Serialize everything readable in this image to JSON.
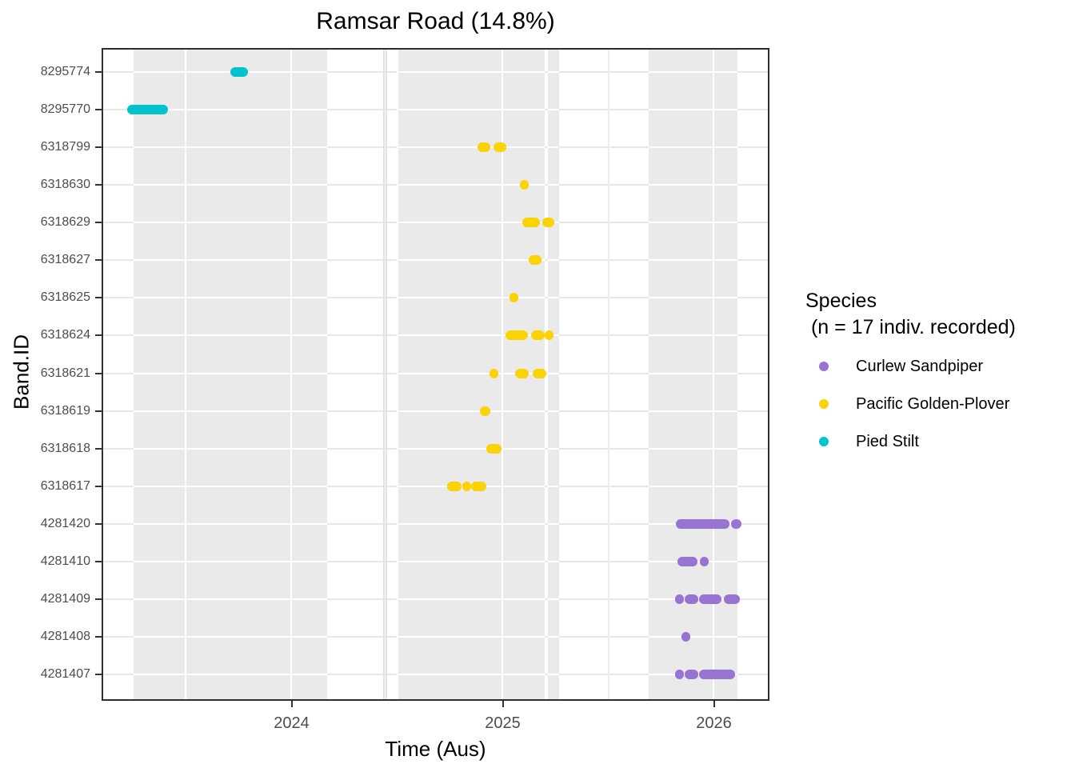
{
  "title": "Ramsar Road (14.8%)",
  "axes": {
    "x_title": "Time (Aus)",
    "y_title": "Band.ID",
    "x_tick_labels": [
      "2024",
      "2025",
      "2026"
    ]
  },
  "legend": {
    "title_line1": "Species",
    "title_line2": " (n = 17 indiv. recorded)",
    "items": [
      {
        "label": "Curlew Sandpiper",
        "color": "#9874D2"
      },
      {
        "label": "Pacific Golden-Plover",
        "color": "#FBD303"
      },
      {
        "label": "Pied Stilt",
        "color": "#00C3CD"
      }
    ]
  },
  "chart_data": {
    "type": "scatter",
    "title": "Ramsar Road (14.8%)",
    "xlabel": "Time (Aus)",
    "ylabel": "Band.ID",
    "xlim": [
      2023.1,
      2026.26
    ],
    "x_major_ticks": [
      2024,
      2025,
      2026
    ],
    "x_minor_gridlines": [
      2023.5,
      2024.5,
      2025.5
    ],
    "grid": "horizontal gridline per Band.ID row; vertical major+minor year gridlines; grey shaded monitoring periods behind data",
    "legend_position": "right",
    "species_colors": {
      "Curlew Sandpiper": "#9874D2",
      "Pacific Golden-Plover": "#FBD303",
      "Pied Stilt": "#00C3CD"
    },
    "shaded_periods": [
      [
        2023.253,
        2024.169
      ],
      [
        2024.497,
        2025.199
      ],
      [
        2025.214,
        2025.267
      ],
      [
        2025.691,
        2026.11
      ]
    ],
    "thin_marks": [
      2024.436,
      2024.449
    ],
    "rows": [
      {
        "band_id": "8295774",
        "species": "Pied Stilt",
        "detections": [
          [
            2023.71,
            2023.794
          ]
        ]
      },
      {
        "band_id": "8295770",
        "species": "Pied Stilt",
        "detections": [
          [
            2023.222,
            2023.415
          ]
        ]
      },
      {
        "band_id": "6318799",
        "species": "Pacific Golden-Plover",
        "detections": [
          [
            2024.881,
            2024.941
          ],
          [
            2024.956,
            2025.017
          ]
        ]
      },
      {
        "band_id": "6318630",
        "species": "Pacific Golden-Plover",
        "detections": [
          [
            2025.085,
            2025.123
          ]
        ]
      },
      {
        "band_id": "6318629",
        "species": "Pacific Golden-Plover",
        "detections": [
          [
            2025.093,
            2025.176
          ],
          [
            2025.188,
            2025.244
          ]
        ]
      },
      {
        "band_id": "6318627",
        "species": "Pacific Golden-Plover",
        "detections": [
          [
            2025.123,
            2025.184
          ]
        ]
      },
      {
        "band_id": "6318625",
        "species": "Pacific Golden-Plover",
        "detections": [
          [
            2025.032,
            2025.074
          ]
        ]
      },
      {
        "band_id": "6318624",
        "species": "Pacific Golden-Plover",
        "detections": [
          [
            2025.013,
            2025.119
          ],
          [
            2025.134,
            2025.199
          ],
          [
            2025.203,
            2025.236
          ]
        ]
      },
      {
        "band_id": "6318621",
        "species": "Pacific Golden-Plover",
        "detections": [
          [
            2024.938,
            2024.975
          ],
          [
            2025.059,
            2025.123
          ],
          [
            2025.142,
            2025.206
          ]
        ]
      },
      {
        "band_id": "6318619",
        "species": "Pacific Golden-Plover",
        "detections": [
          [
            2024.892,
            2024.941
          ]
        ]
      },
      {
        "band_id": "6318618",
        "species": "Pacific Golden-Plover",
        "detections": [
          [
            2024.922,
            2024.994
          ]
        ]
      },
      {
        "band_id": "6318617",
        "species": "Pacific Golden-Plover",
        "detections": [
          [
            2024.737,
            2024.805
          ],
          [
            2024.809,
            2024.847
          ],
          [
            2024.85,
            2024.922
          ]
        ]
      },
      {
        "band_id": "4281420",
        "species": "Curlew Sandpiper",
        "detections": [
          [
            2025.82,
            2026.074
          ],
          [
            2026.081,
            2026.131
          ]
        ]
      },
      {
        "band_id": "4281410",
        "species": "Curlew Sandpiper",
        "detections": [
          [
            2025.827,
            2025.922
          ],
          [
            2025.933,
            2025.975
          ]
        ]
      },
      {
        "band_id": "4281409",
        "species": "Curlew Sandpiper",
        "detections": [
          [
            2025.82,
            2025.854
          ],
          [
            2025.861,
            2025.926
          ],
          [
            2025.93,
            2026.036
          ],
          [
            2026.047,
            2026.123
          ]
        ]
      },
      {
        "band_id": "4281408",
        "species": "Curlew Sandpiper",
        "detections": [
          [
            2025.85,
            2025.888
          ]
        ]
      },
      {
        "band_id": "4281407",
        "species": "Curlew Sandpiper",
        "detections": [
          [
            2025.82,
            2025.858
          ],
          [
            2025.861,
            2025.926
          ],
          [
            2025.93,
            2026.1
          ]
        ]
      }
    ]
  }
}
